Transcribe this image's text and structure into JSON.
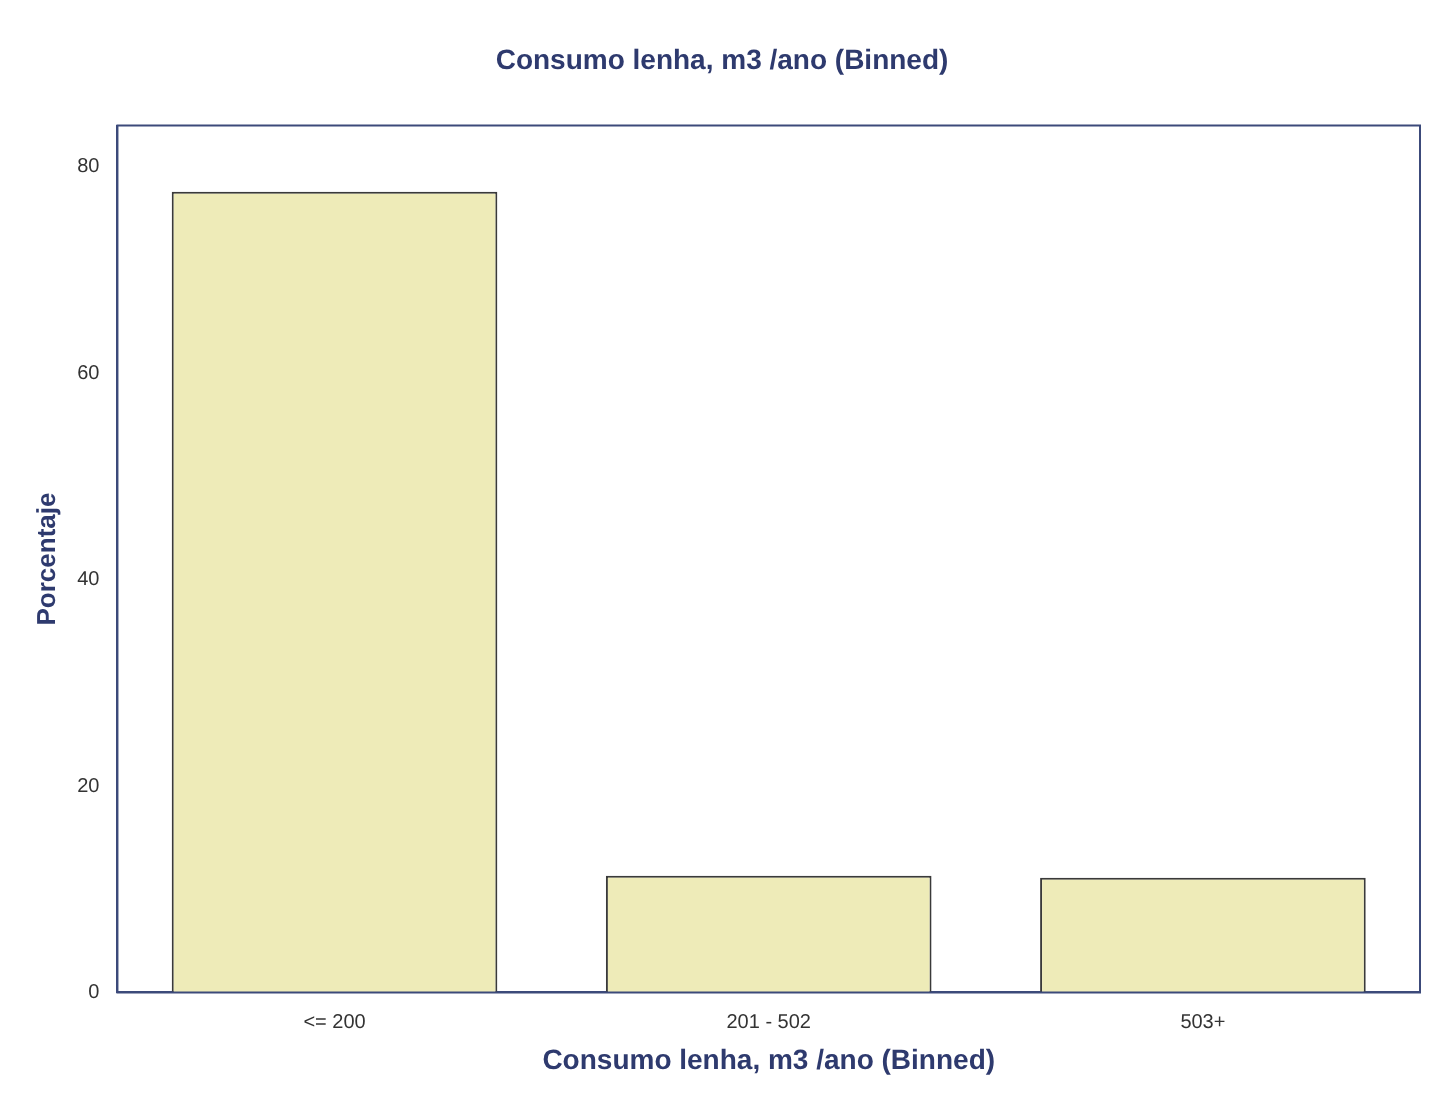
{
  "chart_data": {
    "type": "bar",
    "title": "Consumo lenha, m3 /ano (Binned)",
    "xlabel": "Consumo lenha, m3 /ano (Binned)",
    "ylabel": "Porcentaje",
    "categories": [
      "<= 200",
      "201 - 502",
      "503+"
    ],
    "values": [
      77.6,
      11.3,
      11.1
    ],
    "color": "#eeebb8",
    "ylim": [
      0,
      84
    ],
    "yticks": [
      0,
      20,
      40,
      60,
      80
    ],
    "grid": false,
    "legend": false
  }
}
